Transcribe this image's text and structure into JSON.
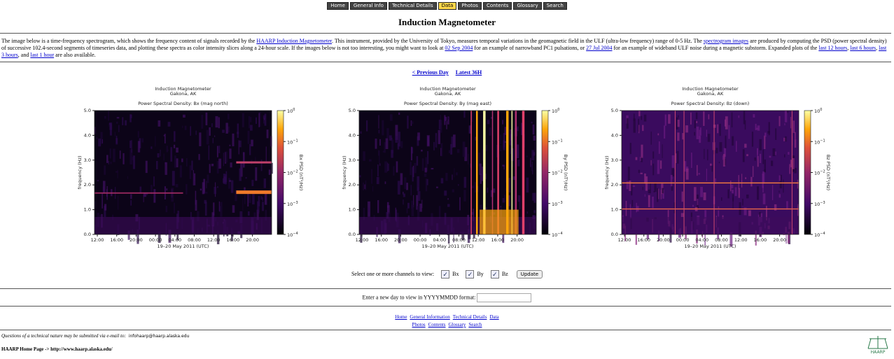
{
  "nav": {
    "items": [
      "Home",
      "General Info",
      "Technical Details",
      "Data",
      "Photos",
      "Contents",
      "Glossary",
      "Search"
    ],
    "active": 3
  },
  "title": "Induction Magnetometer",
  "intro": [
    {
      "text": "The image below is a time-frequency spectrogram, which shows the frequency content of signals recorded by the "
    },
    {
      "text": "HAARP Induction Magnetometer",
      "link": true
    },
    {
      "text": ". This instrument, provided by the University of Tokyo, measures temporal variations in the geomagnetic field in the ULF (ultra-low frequency) range of 0-5 Hz. The "
    },
    {
      "text": "spectrogram images",
      "link": true
    },
    {
      "text": " are produced by computing the PSD (power spectral density) of successive 102.4-second segments of timeseries data, and plotting these spectra as color intensity slices along a 24-hour scale. If the images below is not too interesting, you might want to look at "
    },
    {
      "text": "02 Sep 2004",
      "link": true
    },
    {
      "text": " for an example of narrowband PC1 pulsations, or "
    },
    {
      "text": "27 Jul 2004",
      "link": true
    },
    {
      "text": " for an example of wideband ULF noise during a magnetic substorm. Expanded plots of the "
    },
    {
      "text": "last 12 hours",
      "link": true
    },
    {
      "text": ", "
    },
    {
      "text": "last 6 hours",
      "link": true
    },
    {
      "text": ", "
    },
    {
      "text": "last 3 hours",
      "link": true
    },
    {
      "text": ", and "
    },
    {
      "text": "last 1 hour",
      "link": true
    },
    {
      "text": " are also available."
    }
  ],
  "pager": [
    "< Previous Day",
    "Latest 36H"
  ],
  "plots": [
    {
      "header": [
        "Induction Magnetometer",
        "Gakona, AK"
      ],
      "title": "Power Spectral Density: Bx (mag north)",
      "ylabel": "frequency (Hz)",
      "yticks": [
        "0.0",
        "1.0",
        "2.0",
        "3.0",
        "4.0",
        "5.0"
      ],
      "xticks": [
        "12:00",
        "16:00",
        "20:00",
        "00:00",
        "04:00",
        "08:00",
        "12:00",
        "16:00",
        "20:00"
      ],
      "xlabel": "19–20 May 2011 (UTC)",
      "cbar_label": "Bx PSD (nT²/Hz)",
      "cbar_ticks": [
        {
          "base": "10",
          "exp": "0"
        },
        {
          "base": "10",
          "exp": "−1"
        },
        {
          "base": "10",
          "exp": "−2"
        },
        {
          "base": "10",
          "exp": "−3"
        },
        {
          "base": "10",
          "exp": "−4"
        }
      ]
    },
    {
      "header": [
        "Induction Magnetometer",
        "Gakona, AK"
      ],
      "title": "Power Spectral Density: By (mag east)",
      "ylabel": "frequency (Hz)",
      "yticks": [
        "0.0",
        "1.0",
        "2.0",
        "3.0",
        "4.0",
        "5.0"
      ],
      "xticks": [
        "12:00",
        "16:00",
        "20:00",
        "00:00",
        "04:00",
        "08:00",
        "12:00",
        "16:00",
        "20:00"
      ],
      "xlabel": "19–20 May 2011 (UTC)",
      "cbar_label": "By PSD (nT²/Hz)",
      "cbar_ticks": [
        {
          "base": "10",
          "exp": "0"
        },
        {
          "base": "10",
          "exp": "−1"
        },
        {
          "base": "10",
          "exp": "−2"
        },
        {
          "base": "10",
          "exp": "−3"
        },
        {
          "base": "10",
          "exp": "−4"
        }
      ]
    },
    {
      "header": [
        "Induction Magnetometer",
        "Gakona, AK"
      ],
      "title": "Power Spectral Density: Bz (down)",
      "ylabel": "frequency (Hz)",
      "yticks": [
        "0.0",
        "1.0",
        "2.0",
        "3.0",
        "4.0",
        "5.0"
      ],
      "xticks": [
        "12:00",
        "16:00",
        "20:00",
        "00:00",
        "04:00",
        "08:00",
        "12:00",
        "16:00",
        "20:00"
      ],
      "xlabel": "19–20 May 2011 (UTC)",
      "cbar_label": "Bz PSD (nT²/Hz)",
      "cbar_ticks": [
        {
          "base": "10",
          "exp": "0"
        },
        {
          "base": "10",
          "exp": "−1"
        },
        {
          "base": "10",
          "exp": "−2"
        },
        {
          "base": "10",
          "exp": "−3"
        },
        {
          "base": "10",
          "exp": "−4"
        }
      ]
    }
  ],
  "channels": {
    "prompt": "Select one or more channels to view:",
    "options": [
      "Bx",
      "By",
      "Bz"
    ],
    "button": "Update"
  },
  "day_prompt": "Enter a new day to view in YYYYMMDD format:",
  "footer_links": [
    [
      "Home",
      "General Information",
      "Technical Details",
      "Data"
    ],
    [
      "Photos",
      "Contents",
      "Glossary",
      "Search"
    ]
  ],
  "contact": {
    "text": "Questions of a technical nature may be submitted via e-mail to:",
    "email": "infohaarp@haarp.alaska.edu"
  },
  "home": "HAARP Home Page -> http://www.haarp.alaska.edu/",
  "logo": "HAARP"
}
